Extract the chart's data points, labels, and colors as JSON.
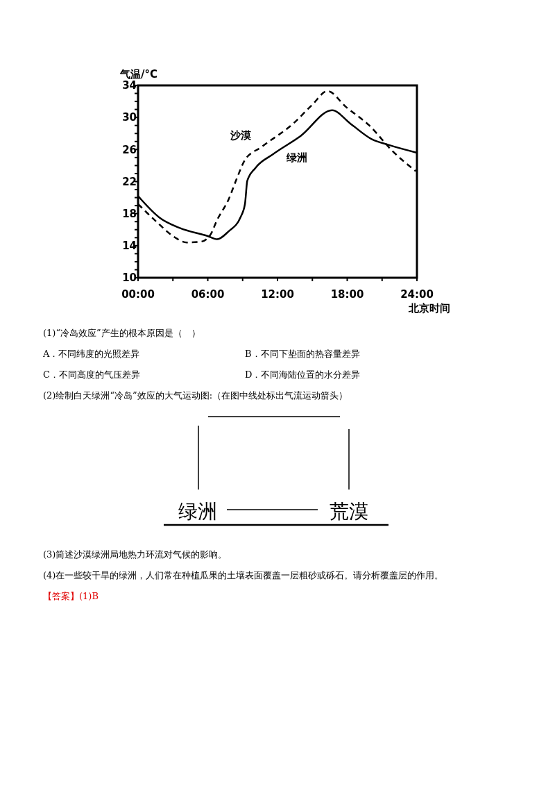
{
  "chart_data": {
    "type": "line",
    "xlabel": "北京时间",
    "ylabel": "气温/°C",
    "xlim": [
      0,
      24
    ],
    "ylim": [
      10,
      34
    ],
    "xticks": [
      {
        "value": 0,
        "label": "00:00"
      },
      {
        "value": 3,
        "label": null
      },
      {
        "value": 6,
        "label": "06:00"
      },
      {
        "value": 9,
        "label": null
      },
      {
        "value": 12,
        "label": "12:00"
      },
      {
        "value": 15,
        "label": null
      },
      {
        "value": 18,
        "label": "18:00"
      },
      {
        "value": 21,
        "label": null
      },
      {
        "value": 24,
        "label": "24:00"
      }
    ],
    "yticks": [
      10,
      {
        "value": 11,
        "label": null
      },
      {
        "value": 12,
        "label": null
      },
      {
        "value": 13,
        "label": null
      },
      14,
      {
        "value": 15,
        "label": null
      },
      {
        "value": 16,
        "label": null
      },
      {
        "value": 17,
        "label": null
      },
      18,
      {
        "value": 19,
        "label": null
      },
      {
        "value": 20,
        "label": null
      },
      {
        "value": 21,
        "label": null
      },
      22,
      {
        "value": 23,
        "label": null
      },
      {
        "value": 24,
        "label": null
      },
      {
        "value": 25,
        "label": null
      },
      26,
      {
        "value": 27,
        "label": null
      },
      {
        "value": 28,
        "label": null
      },
      {
        "value": 29,
        "label": null
      },
      30,
      {
        "value": 31,
        "label": null
      },
      {
        "value": 32,
        "label": null
      },
      {
        "value": 33,
        "label": null
      },
      34
    ],
    "grid": false,
    "marker": "none",
    "series": [
      {
        "name": "绿洲",
        "color": "#000000",
        "line_style": "solid",
        "x": [
          0,
          1.85,
          3.6,
          6.0,
          6.8,
          7.8,
          8.8,
          9.2,
          9.4,
          10.1,
          11.6,
          14.0,
          16.7,
          18.3,
          20.1,
          21.5,
          24
        ],
        "values": [
          20.2,
          17.5,
          16.2,
          15.2,
          14.8,
          15.8,
          17.5,
          19.2,
          22.1,
          23.7,
          25.4,
          27.7,
          30.9,
          29.2,
          27.3,
          26.6,
          25.6
        ]
      },
      {
        "name": "沙漠",
        "color": "#000000",
        "line_style": "dashed",
        "x": [
          0,
          1.65,
          3.0,
          4.2,
          5.4,
          6.2,
          6.8,
          7.8,
          8.5,
          9.2,
          10.6,
          13.4,
          15.0,
          16.3,
          17.9,
          19.9,
          21.9,
          23.9
        ],
        "values": [
          19.2,
          16.9,
          15.2,
          14.4,
          14.5,
          15.3,
          17.2,
          19.8,
          22.4,
          24.7,
          26.3,
          29.3,
          31.6,
          33.3,
          31.3,
          29.0,
          25.8,
          23.3
        ]
      }
    ],
    "annotations": [
      "(1)“冷岛效应”产生的根本原因是（　）",
      "A．不同纬度的光照差异",
      "B．不同下垫面的热容量差异",
      "C．不同高度的气压差异",
      "D．不同海陆位置的水分差异",
      "(2)绘制白天绿洲“冷岛”效应的大气运动图:（在图中线处标出气流运动箭头）",
      "绿洲",
      "荒漠",
      "(3)简述沙漠绿洲局地热力环流对气候的影响。",
      "(4)在一些较干旱的绿洲，人们常在种植瓜果的土壤表面覆盖一层粗砂或砾石。请分析覆盖层的作用。",
      "【答案】(1)B"
    ]
  }
}
